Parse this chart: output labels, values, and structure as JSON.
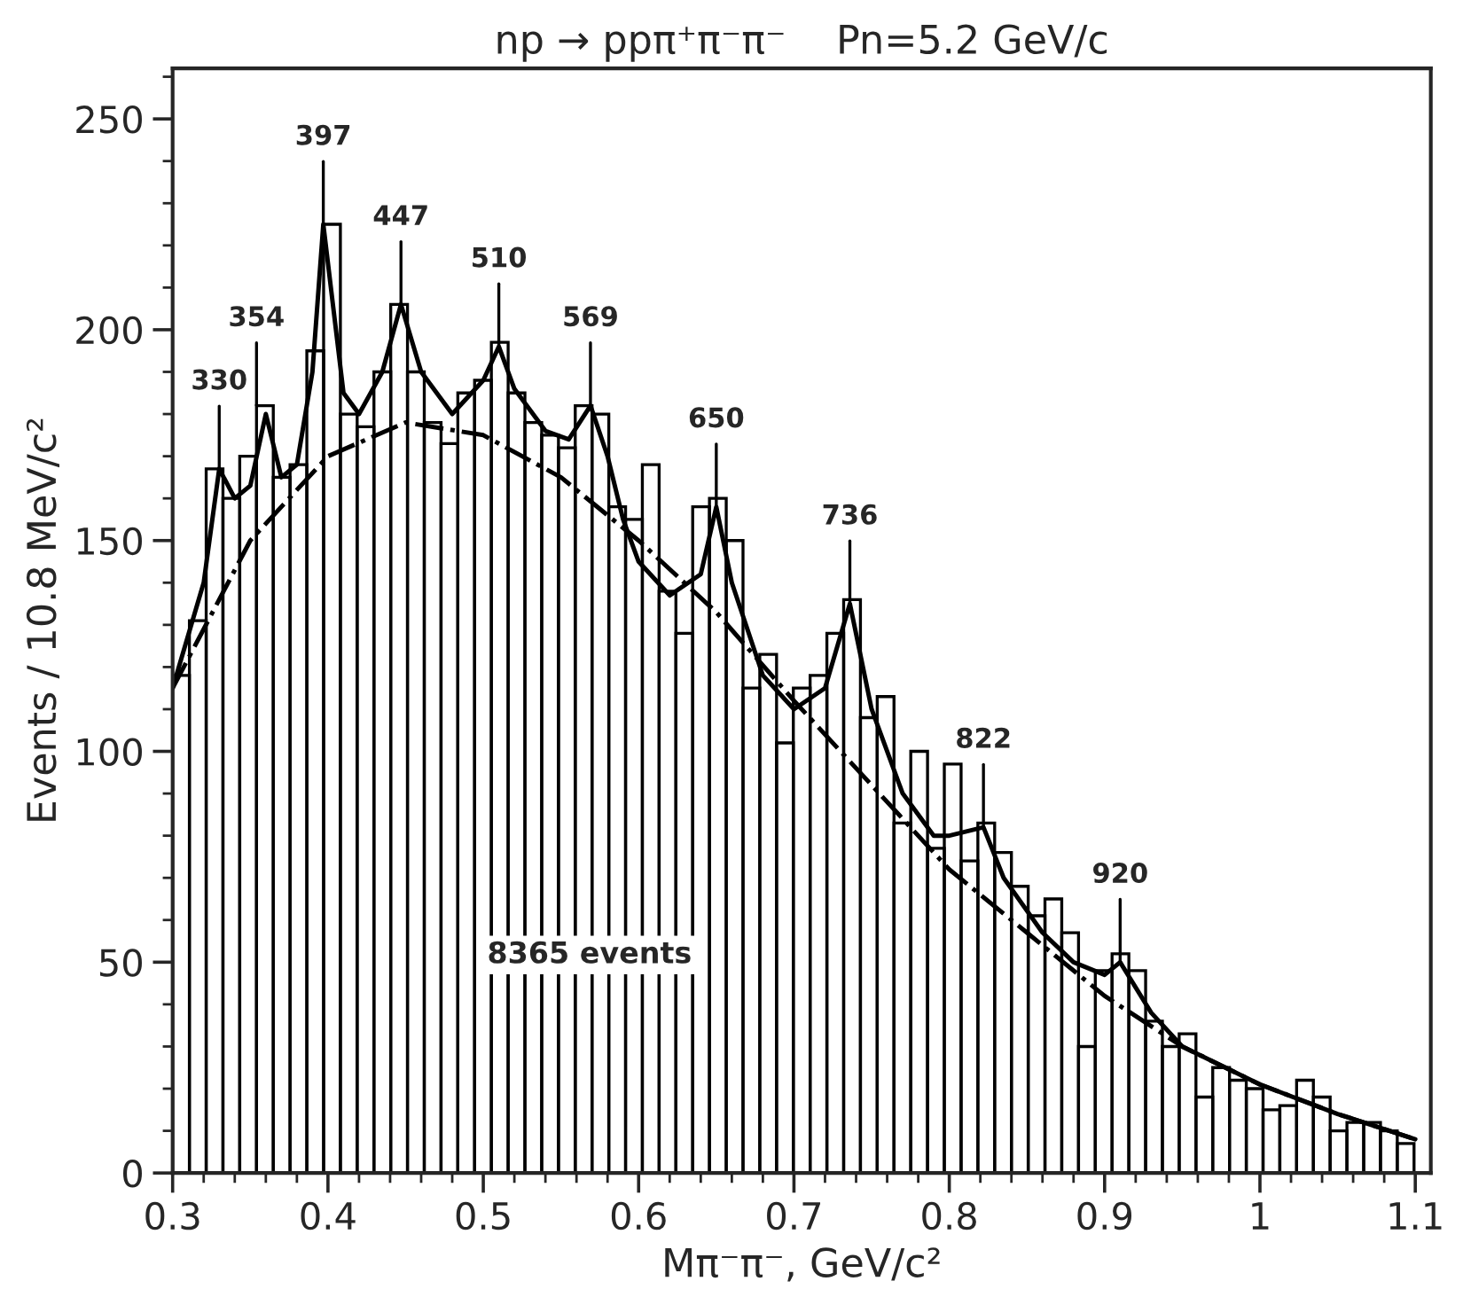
{
  "chart_data": {
    "type": "histogram",
    "title": "np → ppπ⁺π⁻π⁻    Pn=5.2 GeV/c",
    "xlabel": "Mπ⁻π⁻, GeV/c²",
    "ylabel": "Events / 10.8 MeV/c²",
    "bins": [
      0.3,
      0.3108,
      0.3216,
      0.3324,
      0.3432,
      0.354,
      0.3648,
      0.3756,
      0.3864,
      0.3972,
      0.408,
      0.4188,
      0.4296,
      0.4404,
      0.4512,
      0.462,
      0.4728,
      0.4836,
      0.4944,
      0.5052,
      0.516,
      0.5268,
      0.5376,
      0.5484,
      0.5592,
      0.57,
      0.5808,
      0.5916,
      0.6024,
      0.6132,
      0.624,
      0.6348,
      0.6456,
      0.6564,
      0.6672,
      0.678,
      0.6888,
      0.6996,
      0.7104,
      0.7212,
      0.732,
      0.7428,
      0.7536,
      0.7644,
      0.7752,
      0.786,
      0.7968,
      0.8076,
      0.8184,
      0.8292,
      0.84,
      0.8508,
      0.8616,
      0.8724,
      0.8832,
      0.894,
      0.9048,
      0.9156,
      0.9264,
      0.9372,
      0.948,
      0.9588,
      0.9696,
      0.9804,
      0.9912,
      1.002,
      1.0128,
      1.0236,
      1.0344,
      1.0452,
      1.056,
      1.0668,
      1.0776,
      1.0884,
      1.0992
    ],
    "values": [
      118,
      131,
      167,
      160,
      170,
      182,
      165,
      168,
      195,
      225,
      180,
      177,
      190,
      206,
      190,
      178,
      173,
      185,
      188,
      197,
      185,
      178,
      175,
      172,
      182,
      180,
      158,
      155,
      168,
      138,
      128,
      158,
      160,
      150,
      115,
      123,
      102,
      115,
      118,
      128,
      136,
      108,
      113,
      83,
      100,
      77,
      97,
      74,
      83,
      76,
      68,
      61,
      65,
      57,
      30,
      48,
      52,
      48,
      36,
      30,
      33,
      18,
      25,
      22,
      20,
      15,
      16,
      22,
      18,
      10,
      12,
      12,
      10,
      7
    ],
    "color": "#000000",
    "series": [
      {
        "type": "line",
        "color": "#000000",
        "line_style": "solid",
        "x": [
          0.3,
          0.32,
          0.33,
          0.34,
          0.35,
          0.36,
          0.37,
          0.38,
          0.39,
          0.397,
          0.41,
          0.42,
          0.435,
          0.447,
          0.46,
          0.48,
          0.5,
          0.51,
          0.52,
          0.54,
          0.555,
          0.569,
          0.58,
          0.59,
          0.6,
          0.62,
          0.64,
          0.65,
          0.66,
          0.68,
          0.7,
          0.72,
          0.736,
          0.75,
          0.77,
          0.79,
          0.8,
          0.822,
          0.835,
          0.86,
          0.88,
          0.9,
          0.91,
          0.93,
          0.95,
          1.0,
          1.05,
          1.1
        ],
        "values": [
          115,
          140,
          167,
          160,
          163,
          180,
          165,
          168,
          190,
          225,
          185,
          180,
          190,
          206,
          190,
          180,
          188,
          196,
          186,
          176,
          174,
          182,
          170,
          155,
          145,
          137,
          142,
          158,
          140,
          118,
          110,
          115,
          135,
          110,
          90,
          80,
          80,
          82,
          70,
          57,
          50,
          47,
          50,
          38,
          30,
          21,
          14,
          8
        ]
      },
      {
        "type": "line",
        "color": "#000000",
        "line_style": "dashdot",
        "x": [
          0.3,
          0.35,
          0.4,
          0.45,
          0.5,
          0.55,
          0.6,
          0.65,
          0.7,
          0.75,
          0.8,
          0.85,
          0.9,
          0.95,
          1.0,
          1.05,
          1.1
        ],
        "values": [
          115,
          150,
          170,
          178,
          175,
          165,
          150,
          133,
          112,
          92,
          72,
          57,
          42,
          30,
          21,
          14,
          8
        ]
      }
    ],
    "annotations": [
      {
        "text": "330",
        "x": 0.33,
        "y": 167
      },
      {
        "text": "354",
        "x": 0.354,
        "y": 182
      },
      {
        "text": "397",
        "x": 0.397,
        "y": 225
      },
      {
        "text": "447",
        "x": 0.447,
        "y": 206
      },
      {
        "text": "510",
        "x": 0.51,
        "y": 196
      },
      {
        "text": "569",
        "x": 0.569,
        "y": 182
      },
      {
        "text": "650",
        "x": 0.65,
        "y": 158
      },
      {
        "text": "736",
        "x": 0.736,
        "y": 135
      },
      {
        "text": "822",
        "x": 0.822,
        "y": 82
      },
      {
        "text": "920",
        "x": 0.91,
        "y": 50
      },
      "8365 events"
    ],
    "xlim": [
      0.3,
      1.11
    ],
    "ylim": [
      0,
      262
    ],
    "xticks": [
      0.3,
      0.4,
      0.5,
      0.6,
      0.7,
      0.8,
      0.9,
      {
        "value": 1.0,
        "label": "1"
      },
      1.1
    ],
    "yticks": [
      0,
      50,
      100,
      150,
      200,
      250
    ],
    "grid": false,
    "legend": false
  }
}
